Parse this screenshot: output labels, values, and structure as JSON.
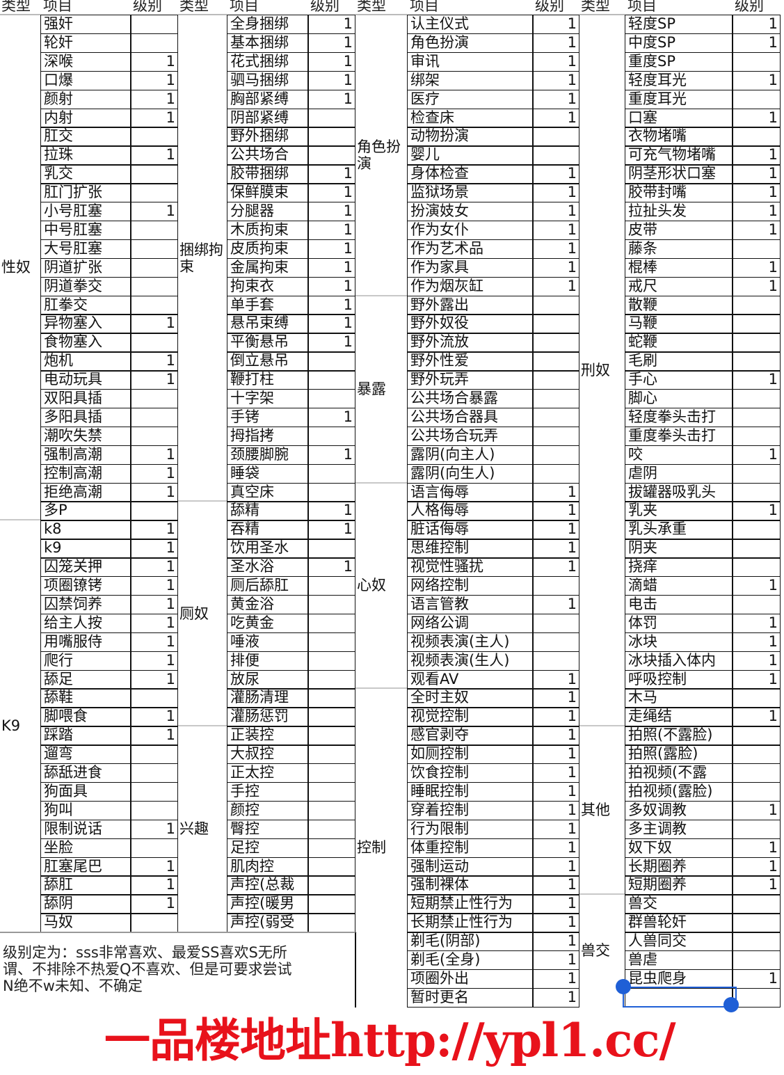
{
  "headers": {
    "type": "类型",
    "item": "项目",
    "level": "级别"
  },
  "columns": [
    {
      "groups": [
        {
          "type": "性奴",
          "items": [
            {
              "name": "强奸",
              "level": ""
            },
            {
              "name": "轮奸",
              "level": ""
            },
            {
              "name": "深喉",
              "level": "1"
            },
            {
              "name": "口爆",
              "level": "1"
            },
            {
              "name": "颜射",
              "level": "1"
            },
            {
              "name": "内射",
              "level": "1"
            },
            {
              "name": "肛交",
              "level": ""
            },
            {
              "name": "拉珠",
              "level": "1"
            },
            {
              "name": "乳交",
              "level": ""
            },
            {
              "name": "肛门扩张",
              "level": ""
            },
            {
              "name": "小号肛塞",
              "level": "1"
            },
            {
              "name": "中号肛塞",
              "level": ""
            },
            {
              "name": "大号肛塞",
              "level": ""
            },
            {
              "name": "阴道扩张",
              "level": ""
            },
            {
              "name": "阴道拳交",
              "level": ""
            },
            {
              "name": "肛拳交",
              "level": ""
            },
            {
              "name": "异物塞入",
              "level": "1"
            },
            {
              "name": "食物塞入",
              "level": ""
            },
            {
              "name": "炮机",
              "level": "1"
            },
            {
              "name": "电动玩具",
              "level": "1"
            },
            {
              "name": "双阳具插",
              "level": ""
            },
            {
              "name": "多阳具插",
              "level": ""
            },
            {
              "name": "潮吹失禁",
              "level": ""
            },
            {
              "name": "强制高潮",
              "level": "1"
            },
            {
              "name": "控制高潮",
              "level": "1"
            },
            {
              "name": "拒绝高潮",
              "level": "1"
            },
            {
              "name": "多P",
              "level": ""
            }
          ]
        },
        {
          "type": "K9",
          "items": [
            {
              "name": "k8",
              "level": "1"
            },
            {
              "name": "k9",
              "level": "1"
            },
            {
              "name": "囚笼关押",
              "level": "1"
            },
            {
              "name": "项圈镣铐",
              "level": "1"
            },
            {
              "name": "囚禁饲养",
              "level": "1"
            },
            {
              "name": "给主人按",
              "level": "1"
            },
            {
              "name": "用嘴服侍",
              "level": "1"
            },
            {
              "name": "爬行",
              "level": "1"
            },
            {
              "name": "舔足",
              "level": "1"
            },
            {
              "name": "舔鞋",
              "level": ""
            },
            {
              "name": "脚喂食",
              "level": "1"
            },
            {
              "name": "踩踏",
              "level": "1"
            },
            {
              "name": "遛弯",
              "level": ""
            },
            {
              "name": "舔舐进食",
              "level": ""
            },
            {
              "name": "狗面具",
              "level": ""
            },
            {
              "name": "狗叫",
              "level": ""
            },
            {
              "name": "限制说话",
              "level": "1"
            },
            {
              "name": "坐脸",
              "level": ""
            },
            {
              "name": "肛塞尾巴",
              "level": "1"
            },
            {
              "name": "舔肛",
              "level": "1"
            },
            {
              "name": "舔阴",
              "level": "1"
            },
            {
              "name": "马奴",
              "level": ""
            }
          ]
        }
      ]
    },
    {
      "groups": [
        {
          "type": "捆绑拘束",
          "items": [
            {
              "name": "全身捆绑",
              "level": "1"
            },
            {
              "name": "基本捆绑",
              "level": "1"
            },
            {
              "name": "花式捆绑",
              "level": "1"
            },
            {
              "name": "驷马捆绑",
              "level": "1"
            },
            {
              "name": "胸部紧缚",
              "level": "1"
            },
            {
              "name": "阴部紧缚",
              "level": ""
            },
            {
              "name": "野外捆绑",
              "level": ""
            },
            {
              "name": "公共场合",
              "level": ""
            },
            {
              "name": "胶带捆绑",
              "level": "1"
            },
            {
              "name": "保鲜膜束",
              "level": "1"
            },
            {
              "name": "分腿器",
              "level": "1"
            },
            {
              "name": "木质拘束",
              "level": "1"
            },
            {
              "name": "皮质拘束",
              "level": "1"
            },
            {
              "name": "金属拘束",
              "level": "1"
            },
            {
              "name": "拘束衣",
              "level": "1"
            },
            {
              "name": "单手套",
              "level": "1"
            },
            {
              "name": "悬吊束缚",
              "level": "1"
            },
            {
              "name": "平衡悬吊",
              "level": "1"
            },
            {
              "name": "倒立悬吊",
              "level": ""
            },
            {
              "name": "鞭打柱",
              "level": ""
            },
            {
              "name": "十字架",
              "level": ""
            },
            {
              "name": "手铐",
              "level": "1"
            },
            {
              "name": "拇指拷",
              "level": ""
            },
            {
              "name": "颈腰脚腕",
              "level": "1"
            },
            {
              "name": "睡袋",
              "level": ""
            },
            {
              "name": "真空床",
              "level": ""
            }
          ]
        },
        {
          "type": "厕奴",
          "items": [
            {
              "name": "舔精",
              "level": "1"
            },
            {
              "name": "吞精",
              "level": "1"
            },
            {
              "name": "饮用圣水",
              "level": ""
            },
            {
              "name": "圣水浴",
              "level": "1"
            },
            {
              "name": "厕后舔肛",
              "level": ""
            },
            {
              "name": "黄金浴",
              "level": ""
            },
            {
              "name": "吃黄金",
              "level": ""
            },
            {
              "name": "唾液",
              "level": ""
            },
            {
              "name": "排便",
              "level": ""
            },
            {
              "name": "放尿",
              "level": ""
            },
            {
              "name": "灌肠清理",
              "level": ""
            },
            {
              "name": "灌肠惩罚",
              "level": ""
            }
          ]
        },
        {
          "type": "兴趣",
          "items": [
            {
              "name": "正装控",
              "level": ""
            },
            {
              "name": "大叔控",
              "level": ""
            },
            {
              "name": "正太控",
              "level": ""
            },
            {
              "name": "手控",
              "level": ""
            },
            {
              "name": "颜控",
              "level": ""
            },
            {
              "name": "臀控",
              "level": ""
            },
            {
              "name": "足控",
              "level": ""
            },
            {
              "name": "肌肉控",
              "level": ""
            },
            {
              "name": "声控(总裁",
              "level": ""
            },
            {
              "name": "声控(暖男",
              "level": ""
            },
            {
              "name": "声控(弱受",
              "level": ""
            }
          ]
        }
      ]
    },
    {
      "groups": [
        {
          "type": "角色扮演",
          "items": [
            {
              "name": "认主仪式",
              "level": "1"
            },
            {
              "name": "角色扮演",
              "level": "1"
            },
            {
              "name": "审讯",
              "level": "1"
            },
            {
              "name": "绑架",
              "level": "1"
            },
            {
              "name": "医疗",
              "level": "1"
            },
            {
              "name": "检查床",
              "level": "1"
            },
            {
              "name": "动物扮演",
              "level": ""
            },
            {
              "name": "婴儿",
              "level": ""
            },
            {
              "name": "身体检查",
              "level": "1"
            },
            {
              "name": "监狱场景",
              "level": "1"
            },
            {
              "name": "扮演妓女",
              "level": "1"
            },
            {
              "name": "作为女仆",
              "level": "1"
            },
            {
              "name": "作为艺术品",
              "level": "1"
            },
            {
              "name": "作为家具",
              "level": "1"
            },
            {
              "name": "作为烟灰缸",
              "level": "1"
            }
          ]
        },
        {
          "type": "暴露",
          "items": [
            {
              "name": "野外露出",
              "level": ""
            },
            {
              "name": "野外奴役",
              "level": ""
            },
            {
              "name": "野外流放",
              "level": ""
            },
            {
              "name": "野外性爱",
              "level": ""
            },
            {
              "name": "野外玩弄",
              "level": ""
            },
            {
              "name": "公共场合暴露",
              "level": ""
            },
            {
              "name": "公共场合器具",
              "level": ""
            },
            {
              "name": "公共场合玩弄",
              "level": ""
            },
            {
              "name": "露阴(向主人)",
              "level": ""
            },
            {
              "name": "露阴(向生人)",
              "level": ""
            }
          ]
        },
        {
          "type": "心奴",
          "items": [
            {
              "name": "语言侮辱",
              "level": "1"
            },
            {
              "name": "人格侮辱",
              "level": "1"
            },
            {
              "name": "脏话侮辱",
              "level": "1"
            },
            {
              "name": "思维控制",
              "level": "1"
            },
            {
              "name": "视觉性骚扰",
              "level": "1"
            },
            {
              "name": "网络控制",
              "level": ""
            },
            {
              "name": "语言管教",
              "level": "1"
            },
            {
              "name": "网络公调",
              "level": ""
            },
            {
              "name": "视频表演(主人)",
              "level": ""
            },
            {
              "name": "视频表演(生人)",
              "level": ""
            },
            {
              "name": "观看AV",
              "level": "1"
            }
          ]
        },
        {
          "type": "控制",
          "items": [
            {
              "name": "全时主奴",
              "level": "1"
            },
            {
              "name": "视觉控制",
              "level": "1"
            },
            {
              "name": "感官剥夺",
              "level": "1"
            },
            {
              "name": "如厕控制",
              "level": "1"
            },
            {
              "name": "饮食控制",
              "level": "1"
            },
            {
              "name": "睡眠控制",
              "level": "1"
            },
            {
              "name": "穿着控制",
              "level": "1"
            },
            {
              "name": "行为限制",
              "level": "1"
            },
            {
              "name": "体重控制",
              "level": "1"
            },
            {
              "name": "强制运动",
              "level": "1"
            },
            {
              "name": "强制裸体",
              "level": "1"
            },
            {
              "name": "短期禁止性行为",
              "level": "1"
            },
            {
              "name": "长期禁止性行为",
              "level": "1"
            },
            {
              "name": "剃毛(阴部)",
              "level": "1"
            },
            {
              "name": "剃毛(全身)",
              "level": "1"
            },
            {
              "name": "项圈外出",
              "level": "1"
            },
            {
              "name": "暂时更名",
              "level": "1"
            }
          ]
        }
      ]
    },
    {
      "groups": [
        {
          "type": "刑奴",
          "items": [
            {
              "name": "轻度SP",
              "level": "1"
            },
            {
              "name": "中度SP",
              "level": "1"
            },
            {
              "name": "重度SP",
              "level": ""
            },
            {
              "name": "轻度耳光",
              "level": "1"
            },
            {
              "name": "重度耳光",
              "level": ""
            },
            {
              "name": "口塞",
              "level": "1"
            },
            {
              "name": "衣物堵嘴",
              "level": ""
            },
            {
              "name": "可充气物堵嘴",
              "level": "1"
            },
            {
              "name": "阴茎形状口塞",
              "level": "1"
            },
            {
              "name": "胶带封嘴",
              "level": "1"
            },
            {
              "name": "拉扯头发",
              "level": "1"
            },
            {
              "name": "皮带",
              "level": "1"
            },
            {
              "name": "藤条",
              "level": ""
            },
            {
              "name": "棍棒",
              "level": "1"
            },
            {
              "name": "戒尺",
              "level": "1"
            },
            {
              "name": "散鞭",
              "level": ""
            },
            {
              "name": "马鞭",
              "level": ""
            },
            {
              "name": "蛇鞭",
              "level": ""
            },
            {
              "name": "毛刷",
              "level": ""
            },
            {
              "name": "手心",
              "level": "1"
            },
            {
              "name": "脚心",
              "level": ""
            },
            {
              "name": "轻度拳头击打",
              "level": ""
            },
            {
              "name": "重度拳头击打",
              "level": ""
            },
            {
              "name": "咬",
              "level": "1"
            },
            {
              "name": "虐阴",
              "level": ""
            },
            {
              "name": "拔罐器吸乳头",
              "level": ""
            },
            {
              "name": "乳夹",
              "level": "1"
            },
            {
              "name": "乳头承重",
              "level": ""
            },
            {
              "name": "阴夹",
              "level": ""
            },
            {
              "name": "挠痒",
              "level": ""
            },
            {
              "name": "滴蜡",
              "level": "1"
            },
            {
              "name": "电击",
              "level": ""
            },
            {
              "name": "体罚",
              "level": "1"
            },
            {
              "name": "冰块",
              "level": "1"
            },
            {
              "name": "冰块插入体内",
              "level": "1"
            },
            {
              "name": "呼吸控制",
              "level": "1"
            },
            {
              "name": "木马",
              "level": ""
            },
            {
              "name": "走绳结",
              "level": "1"
            }
          ]
        },
        {
          "type": "其他",
          "items": [
            {
              "name": "拍照(不露脸)",
              "level": ""
            },
            {
              "name": "拍照(露脸)",
              "level": ""
            },
            {
              "name": "拍视频(不露",
              "level": ""
            },
            {
              "name": "拍视频(露脸)",
              "level": ""
            },
            {
              "name": "多奴调教",
              "level": "1"
            },
            {
              "name": "多主调教",
              "level": ""
            },
            {
              "name": "奴下奴",
              "level": "1"
            },
            {
              "name": "长期圈养",
              "level": "1"
            },
            {
              "name": "短期圈养",
              "level": "1"
            }
          ]
        },
        {
          "type": "兽交",
          "items": [
            {
              "name": "兽交",
              "level": ""
            },
            {
              "name": "群兽轮奸",
              "level": ""
            },
            {
              "name": "人兽同交",
              "level": ""
            },
            {
              "name": "兽虐",
              "level": ""
            },
            {
              "name": "昆虫爬身",
              "level": "1"
            },
            {
              "name": "",
              "level": ""
            }
          ]
        }
      ]
    }
  ],
  "note": {
    "line1": "级别定为：sss非常喜欢、最爱SS喜欢S无所",
    "line2": "谓、不排除不热爱Q不喜欢、但是可要求尝试",
    "line3": "N绝不w未知、不确定"
  },
  "watermark": "一品楼地址http://ypl1.cc/",
  "colors": {
    "grid": "#111111",
    "watermark": "#e8121b",
    "selection": "#1f5fd6"
  }
}
